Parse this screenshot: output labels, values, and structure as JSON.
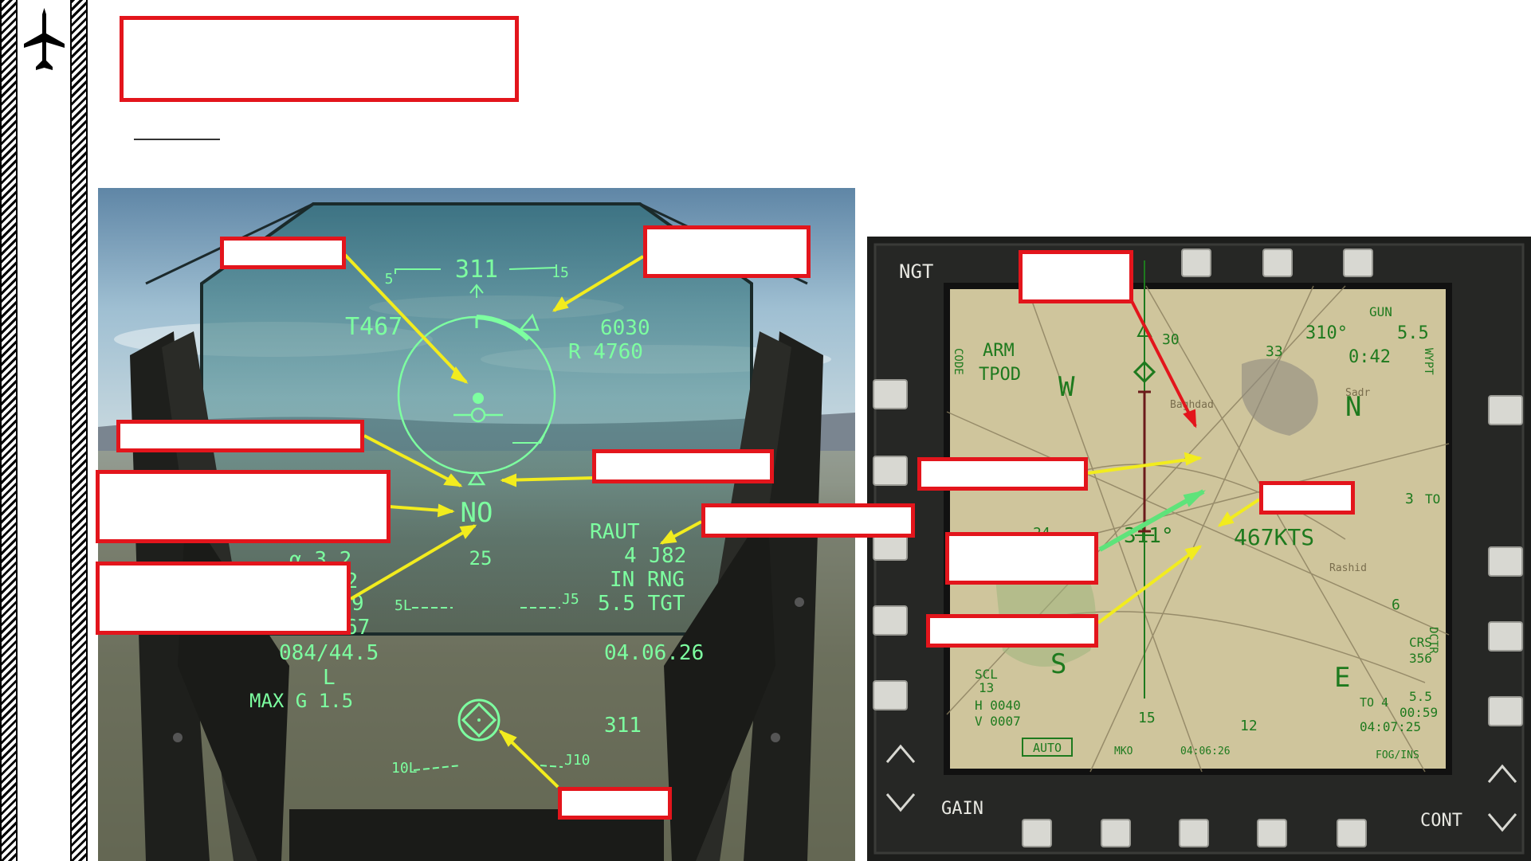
{
  "hud": {
    "heading": "311",
    "tick_left": "5",
    "tick_right": "15",
    "altitude_label": "T467",
    "range_top": "6030",
    "range_r": "R 4760",
    "no_label": "NO",
    "below_no": "25",
    "mode": "RAUT",
    "target_id": "4  J82",
    "in_range": "IN RNG",
    "tgt_dist": "5.5 TGT",
    "aoa": "3.2",
    "left_frag_1": "72",
    "left_frag_2": "9",
    "left_frag_3": "67",
    "bearing": "084/44.5",
    "l_letter": "L",
    "max_g": "MAX G  1.5",
    "time": "04.06.26",
    "bottom_heading": "311",
    "pitch_5l": "5L",
    "pitch_5r": "J5",
    "pitch_10l": "10L",
    "pitch_10r": "J10"
  },
  "mfd": {
    "ngt": "NGT",
    "arm": "ARM",
    "tpod": "TPOD",
    "gun": "GUN",
    "heading_deg": "310°",
    "dist": "5.5",
    "time_to": "0:42",
    "compass_w": "W",
    "compass_n": "N",
    "compass_s": "S",
    "compass_e": "E",
    "tick_30": "30",
    "tick_33": "33",
    "tick_3": "3",
    "tick_6": "6",
    "tick_12": "12",
    "tick_15": "15",
    "tick_24": "24",
    "speed": "467KTS",
    "track": "311°",
    "to_label": "TO",
    "crs": "CRS",
    "crs_val": "356",
    "scl": "SCL",
    "scl_val": "13",
    "h_val": "H 0040",
    "v_val": "V 0007",
    "auto": "AUTO",
    "mko": "MKO",
    "date_bottom": "04:06:26",
    "fog_ins": "FOG/INS",
    "to_dist": "5.5",
    "to_time": "00:59",
    "to_clock": "04:07:25",
    "to_line": "TO 4",
    "gain": "GAIN",
    "cont": "CONT",
    "side_left_1": "CODE",
    "side_right_1": "WYPT",
    "side_right_2": "DCTR",
    "map_towns": [
      "Baghdad",
      "Sadr",
      "Rashid"
    ]
  },
  "colors": {
    "annotation_red": "#e3151c",
    "arrow_yellow": "#f2ec1e",
    "arrow_green": "#5ee37a",
    "arrow_red": "#e3151c",
    "hud_symbology": "#7dffa0",
    "mfd_symbology": "#1e7a1e",
    "mfd_cursor": "#6b1a1a"
  },
  "icons": {
    "plane": "aircraft-icon"
  }
}
